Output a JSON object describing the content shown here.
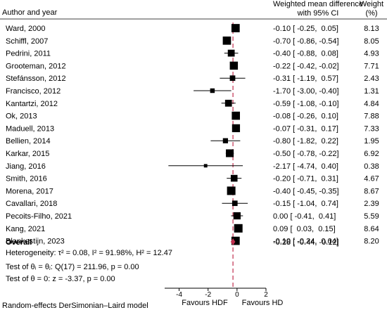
{
  "header": {
    "study_col": "Author and year",
    "effect_col_line1": "Weighted mean difference",
    "effect_col_line2": "with 95% CI",
    "weight_col_line1": "Weight",
    "weight_col_line2": "(%)"
  },
  "chart_data": {
    "type": "forest",
    "xlim": [
      -5,
      2
    ],
    "xticks": [
      "-4",
      "-2",
      "0",
      "2"
    ],
    "reference_line": -0.28,
    "studies": [
      {
        "name": "Ward, 2000",
        "est": -0.1,
        "lo": -0.25,
        "hi": 0.05,
        "weight": 8.13,
        "ci_text": "-0.10 [ -0.25,  0.05]",
        "weight_text": "8.13"
      },
      {
        "name": "Schiffl, 2007",
        "est": -0.7,
        "lo": -0.86,
        "hi": -0.54,
        "weight": 8.05,
        "ci_text": "-0.70 [ -0.86, -0.54]",
        "weight_text": "8.05"
      },
      {
        "name": "Pedrini, 2011",
        "est": -0.4,
        "lo": -0.88,
        "hi": 0.08,
        "weight": 4.93,
        "ci_text": "-0.40 [ -0.88,  0.08]",
        "weight_text": "4.93"
      },
      {
        "name": "Grooteman, 2012",
        "est": -0.22,
        "lo": -0.42,
        "hi": -0.02,
        "weight": 7.71,
        "ci_text": "-0.22 [ -0.42, -0.02]",
        "weight_text": "7.71"
      },
      {
        "name": "Stefánsson, 2012",
        "est": -0.31,
        "lo": -1.19,
        "hi": 0.57,
        "weight": 2.43,
        "ci_text": "-0.31 [ -1.19,  0.57]",
        "weight_text": "2.43"
      },
      {
        "name": "Francisco, 2012",
        "est": -1.7,
        "lo": -3.0,
        "hi": -0.4,
        "weight": 1.31,
        "ci_text": "-1.70 [ -3.00, -0.40]",
        "weight_text": "1.31"
      },
      {
        "name": "Kantartzi, 2012",
        "est": -0.59,
        "lo": -1.08,
        "hi": -0.1,
        "weight": 4.84,
        "ci_text": "-0.59 [ -1.08, -0.10]",
        "weight_text": "4.84"
      },
      {
        "name": "Ok, 2013",
        "est": -0.08,
        "lo": -0.26,
        "hi": 0.1,
        "weight": 7.88,
        "ci_text": "-0.08 [ -0.26,  0.10]",
        "weight_text": "7.88"
      },
      {
        "name": "Maduell, 2013",
        "est": -0.07,
        "lo": -0.31,
        "hi": 0.17,
        "weight": 7.33,
        "ci_text": "-0.07 [ -0.31,  0.17]",
        "weight_text": "7.33"
      },
      {
        "name": "Bellien, 2014",
        "est": -0.8,
        "lo": -1.82,
        "hi": 0.22,
        "weight": 1.95,
        "ci_text": "-0.80 [ -1.82,  0.22]",
        "weight_text": "1.95"
      },
      {
        "name": "Karkar, 2015",
        "est": -0.5,
        "lo": -0.78,
        "hi": -0.22,
        "weight": 6.92,
        "ci_text": "-0.50 [ -0.78, -0.22]",
        "weight_text": "6.92"
      },
      {
        "name": "Jiang, 2016",
        "est": -2.17,
        "lo": -4.74,
        "hi": 0.4,
        "weight": 0.38,
        "ci_text": "-2.17 [ -4.74,  0.40]",
        "weight_text": "0.38"
      },
      {
        "name": "Smith, 2016",
        "est": -0.2,
        "lo": -0.71,
        "hi": 0.31,
        "weight": 4.67,
        "ci_text": "-0.20 [ -0.71,  0.31]",
        "weight_text": "4.67"
      },
      {
        "name": "Morena, 2017",
        "est": -0.4,
        "lo": -0.45,
        "hi": -0.35,
        "weight": 8.67,
        "ci_text": "-0.40 [ -0.45, -0.35]",
        "weight_text": "8.67"
      },
      {
        "name": "Cavallari, 2018",
        "est": -0.15,
        "lo": -1.04,
        "hi": 0.74,
        "weight": 2.39,
        "ci_text": "-0.15 [ -1.04,  0.74]",
        "weight_text": "2.39"
      },
      {
        "name": "Pecoits-Filho, 2021",
        "est": 0.0,
        "lo": -0.41,
        "hi": 0.41,
        "weight": 5.59,
        "ci_text": "0.00 [ -0.41,  0.41]",
        "weight_text": "5.59"
      },
      {
        "name": "Kang, 2021",
        "est": 0.09,
        "lo": 0.03,
        "hi": 0.15,
        "weight": 8.64,
        "ci_text": "0.09 [  0.03,  0.15]",
        "weight_text": "8.64"
      },
      {
        "name": "Blankestijn, 2023",
        "est": -0.1,
        "lo": -0.24,
        "hi": 0.04,
        "weight": 8.2,
        "ci_text": "-0.10 [ -0.24,  0.04]",
        "weight_text": "8.20"
      }
    ],
    "overall": {
      "name": "Overall",
      "est": -0.28,
      "lo": -0.44,
      "hi": -0.12,
      "ci_text": "-0.28 [ -0.44, -0.12]"
    },
    "colors": {
      "box": "#000000",
      "diamond": "#c0304f",
      "reference_line": "#c0304f"
    }
  },
  "stats": {
    "heterogeneity": "Heterogeneity: τ² = 0.08, I² = 91.98%, H² = 12.47",
    "test_theta_i": "Test of θᵢ = θⱼ: Q(17) = 211.96, p = 0.00",
    "test_theta": "Test of θ = 0: z = -3.37, p = 0.00"
  },
  "favours_left": "Favours HDF",
  "favours_right": "Favours HD",
  "model_note": "Random-effects DerSimonian–Laird model"
}
